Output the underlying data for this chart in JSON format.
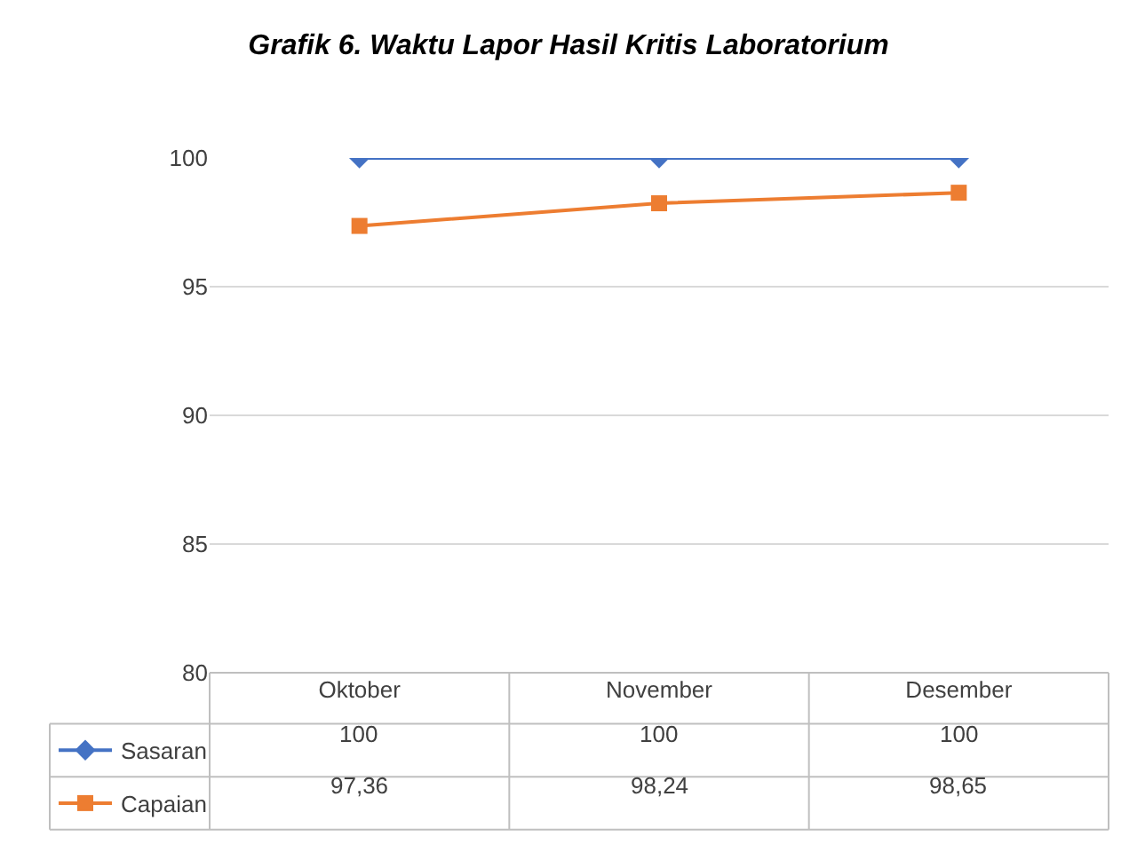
{
  "chart_data": {
    "type": "line",
    "title": "Grafik 6. Waktu Lapor Hasil Kritis Laboratorium",
    "categories": [
      "Oktober",
      "November",
      "Desember"
    ],
    "series": [
      {
        "name": "Sasaran",
        "color": "#4472c4",
        "marker": "diamond",
        "values": [
          100,
          100,
          100
        ],
        "value_labels": [
          "100",
          "100",
          "100"
        ]
      },
      {
        "name": "Capaian",
        "color": "#ed7d31",
        "marker": "square",
        "values": [
          97.36,
          98.24,
          98.65
        ],
        "value_labels": [
          "97,36",
          "98,24",
          "98,65"
        ]
      }
    ],
    "ylim": [
      80,
      100
    ],
    "yticks": [
      80,
      85,
      90,
      95,
      100
    ],
    "grid": "y",
    "legend": "bottom left",
    "line_style": "solid"
  }
}
